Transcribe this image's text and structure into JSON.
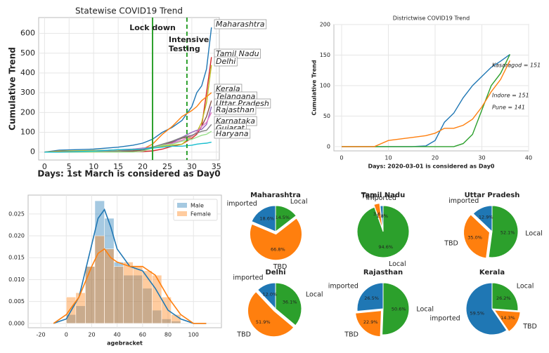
{
  "chart_data": [
    {
      "type": "line",
      "title": "Statewise COVID19 Trend",
      "xlabel": "Days: 1st March is considered as Day0",
      "ylabel": "Cumulative Trend",
      "x": [
        0,
        3,
        10,
        15,
        18,
        20,
        22,
        24,
        26,
        28,
        30,
        31,
        32,
        33,
        34
      ],
      "xlim": [
        -1.2,
        35.6
      ],
      "ylim": [
        -40,
        680
      ],
      "xticks": [
        0,
        5,
        10,
        15,
        20,
        25,
        30,
        35
      ],
      "yticks": [
        0,
        100,
        200,
        300,
        400,
        500,
        600
      ],
      "grid": true,
      "legend": "line-end-boxed",
      "series": [
        {
          "name": "Maharashtra",
          "color": "#1f77b4",
          "values": [
            0,
            10,
            15,
            25,
            35,
            45,
            65,
            100,
            125,
            160,
            230,
            300,
            335,
            420,
            630
          ]
        },
        {
          "name": "Tamil Nadu",
          "color": "#d62728",
          "values": [
            0,
            1,
            1,
            1,
            2,
            3,
            6,
            15,
            30,
            40,
            70,
            90,
            130,
            300,
            480
          ]
        },
        {
          "name": "Delhi",
          "color": "#bcbd22",
          "values": [
            0,
            5,
            8,
            10,
            10,
            15,
            25,
            30,
            35,
            40,
            80,
            100,
            150,
            250,
            440
          ]
        },
        {
          "name": "Kerala",
          "color": "#ff7f0e",
          "values": [
            0,
            3,
            3,
            3,
            5,
            15,
            40,
            90,
            130,
            180,
            210,
            230,
            260,
            280,
            300
          ]
        },
        {
          "name": "Telangana",
          "color": "#8c564b",
          "values": [
            0,
            0,
            1,
            2,
            5,
            10,
            20,
            35,
            50,
            70,
            80,
            100,
            130,
            180,
            260
          ]
        },
        {
          "name": "Uttar Pradesh",
          "color": "#9467bd",
          "values": [
            0,
            0,
            5,
            12,
            15,
            20,
            25,
            35,
            45,
            75,
            100,
            110,
            115,
            140,
            230
          ]
        },
        {
          "name": "Rajasthan",
          "color": "#e377c2",
          "values": [
            0,
            0,
            2,
            4,
            15,
            18,
            25,
            35,
            45,
            60,
            80,
            100,
            130,
            150,
            200
          ]
        },
        {
          "name": "Karnataka",
          "color": "#7f7f7f",
          "values": [
            0,
            0,
            1,
            5,
            10,
            15,
            25,
            40,
            55,
            75,
            85,
            95,
            105,
            110,
            140
          ]
        },
        {
          "name": "Gujarat",
          "color": "#98df8a",
          "values": [
            0,
            0,
            0,
            0,
            0,
            5,
            20,
            35,
            40,
            55,
            65,
            75,
            85,
            90,
            105
          ]
        },
        {
          "name": "Haryana",
          "color": "#17becf",
          "values": [
            0,
            0,
            5,
            12,
            14,
            15,
            20,
            25,
            30,
            30,
            35,
            40,
            43,
            45,
            50
          ]
        }
      ],
      "vlines": [
        {
          "x": 22,
          "color": "#2ca02c",
          "dashed": false,
          "label": [
            "Lock down"
          ],
          "label_color": "#3a8a2a"
        },
        {
          "x": 29,
          "color": "#2ca02c",
          "dashed": true,
          "label": [
            "Intensive",
            "Testing"
          ],
          "label_color": "#000000"
        }
      ]
    },
    {
      "type": "line",
      "title": "Districtwise COVID19 Trend",
      "xlabel": "Days: 2020-03-01 is considered as Day0",
      "ylabel": "Cumulative Trend",
      "x": [
        0,
        7,
        10,
        15,
        18,
        20,
        22,
        24,
        26,
        28,
        30,
        32,
        34,
        36
      ],
      "xlim": [
        -1.65,
        40
      ],
      "ylim": [
        -7,
        200
      ],
      "xticks": [
        0,
        10,
        20,
        30,
        40
      ],
      "yticks": [
        0,
        50,
        100,
        150,
        200
      ],
      "grid": true,
      "legend": "line-end-italic",
      "series": [
        {
          "name": "Kasaragod = 151",
          "color": "#1f77b4",
          "values": [
            0,
            0,
            0,
            0,
            1,
            10,
            40,
            55,
            80,
            100,
            115,
            130,
            140,
            151
          ]
        },
        {
          "name": "Indore = 151",
          "color": "#2ca02c",
          "values": [
            0,
            0,
            0,
            0,
            0,
            0,
            0,
            0,
            5,
            20,
            60,
            100,
            120,
            151
          ]
        },
        {
          "name": "Pune = 141",
          "color": "#ff7f0e",
          "values": [
            0,
            0,
            10,
            15,
            18,
            22,
            30,
            30,
            35,
            45,
            65,
            90,
            110,
            141
          ]
        }
      ]
    },
    {
      "type": "histogram",
      "xlabel": "agebracket",
      "bins": [
        0,
        7.5,
        15,
        22.5,
        30,
        37.5,
        45,
        52.5,
        60,
        67.5,
        75,
        82.5,
        90
      ],
      "kde_x": [
        -10,
        0,
        10,
        20,
        25,
        30,
        35,
        40,
        50,
        60,
        70,
        80,
        90,
        100,
        110
      ],
      "xlim": [
        -30,
        122
      ],
      "ylim": [
        -0.001,
        0.0293
      ],
      "xticks": [
        -20,
        0,
        20,
        40,
        60,
        80,
        100
      ],
      "yticks": [
        {
          "value": 0,
          "label": "0.000"
        },
        {
          "value": 0.005,
          "label": "0.005"
        },
        {
          "value": 0.01,
          "label": "0.010"
        },
        {
          "value": 0.015,
          "label": "0.015"
        },
        {
          "value": 0.02,
          "label": "0.020"
        },
        {
          "value": 0.025,
          "label": "0.025"
        }
      ],
      "grid": true,
      "legend": "upper right",
      "series": [
        {
          "name": "Male",
          "color": "#1f77b4",
          "values": [
            0.002,
            0.004,
            0.013,
            0.028,
            0.024,
            0.014,
            0.011,
            0.011,
            0.008,
            0.003,
            0.001,
            0.0005
          ],
          "kde": [
            0,
            0.001,
            0.006,
            0.018,
            0.024,
            0.026,
            0.022,
            0.017,
            0.013,
            0.012,
            0.008,
            0.003,
            0.001,
            0,
            0
          ]
        },
        {
          "name": "Female",
          "color": "#ff7f0e",
          "values": [
            0.006,
            0.007,
            0.013,
            0.02,
            0.017,
            0.013,
            0.014,
            0.013,
            0.012,
            0.011,
            0.006,
            0.002
          ],
          "kde": [
            0,
            0.002,
            0.006,
            0.013,
            0.016,
            0.017,
            0.015,
            0.014,
            0.013,
            0.013,
            0.011,
            0.006,
            0.002,
            0,
            0
          ]
        }
      ]
    },
    {
      "type": "pie",
      "title": "Maharashtra",
      "categories": [
        "Local",
        "TBD",
        "imported"
      ],
      "values": [
        14.5,
        66.8,
        18.6
      ],
      "value_labels": [
        "14.5%",
        "66.8%",
        "18.6%"
      ],
      "colors": [
        "#2ca02c",
        "#ff7f0e",
        "#1f77b4"
      ],
      "explode": [
        0,
        0.1,
        0
      ]
    },
    {
      "type": "pie",
      "title": "Tamil Nadu",
      "categories": [
        "Local",
        "TBD",
        "imported"
      ],
      "values": [
        94.6,
        3.6,
        1.8
      ],
      "value_labels": [
        "94.6%",
        "3.6%",
        "1.8%"
      ],
      "colors": [
        "#2ca02c",
        "#ff7f0e",
        "#1f77b4"
      ],
      "explode": [
        0,
        0.1,
        0
      ]
    },
    {
      "type": "pie",
      "title": "Uttar Pradesh",
      "categories": [
        "Local",
        "TBD",
        "imported"
      ],
      "values": [
        52.1,
        35.0,
        12.9
      ],
      "value_labels": [
        "52.1%",
        "35.0%",
        "12.9%"
      ],
      "colors": [
        "#2ca02c",
        "#ff7f0e",
        "#1f77b4"
      ],
      "explode": [
        0,
        0.1,
        0
      ]
    },
    {
      "type": "pie",
      "title": "Delhi",
      "categories": [
        "Local",
        "TBD",
        "imported"
      ],
      "values": [
        36.1,
        51.9,
        12.0
      ],
      "value_labels": [
        "36.1%",
        "51.9%",
        "12.0%"
      ],
      "colors": [
        "#2ca02c",
        "#ff7f0e",
        "#1f77b4"
      ],
      "explode": [
        0,
        0.1,
        0
      ]
    },
    {
      "type": "pie",
      "title": "Rajasthan",
      "categories": [
        "Local",
        "TBD",
        "imported"
      ],
      "values": [
        50.6,
        22.9,
        26.5
      ],
      "value_labels": [
        "50.6%",
        "22.9%",
        "26.5%"
      ],
      "colors": [
        "#2ca02c",
        "#ff7f0e",
        "#1f77b4"
      ],
      "explode": [
        0,
        0.1,
        0
      ]
    },
    {
      "type": "pie",
      "title": "Kerala",
      "categories": [
        "Local",
        "TBD",
        "imported"
      ],
      "values": [
        26.2,
        14.3,
        59.5
      ],
      "value_labels": [
        "26.2%",
        "14.3%",
        "59.5%"
      ],
      "colors": [
        "#2ca02c",
        "#ff7f0e",
        "#1f77b4"
      ],
      "explode": [
        0,
        0.1,
        0
      ]
    }
  ]
}
